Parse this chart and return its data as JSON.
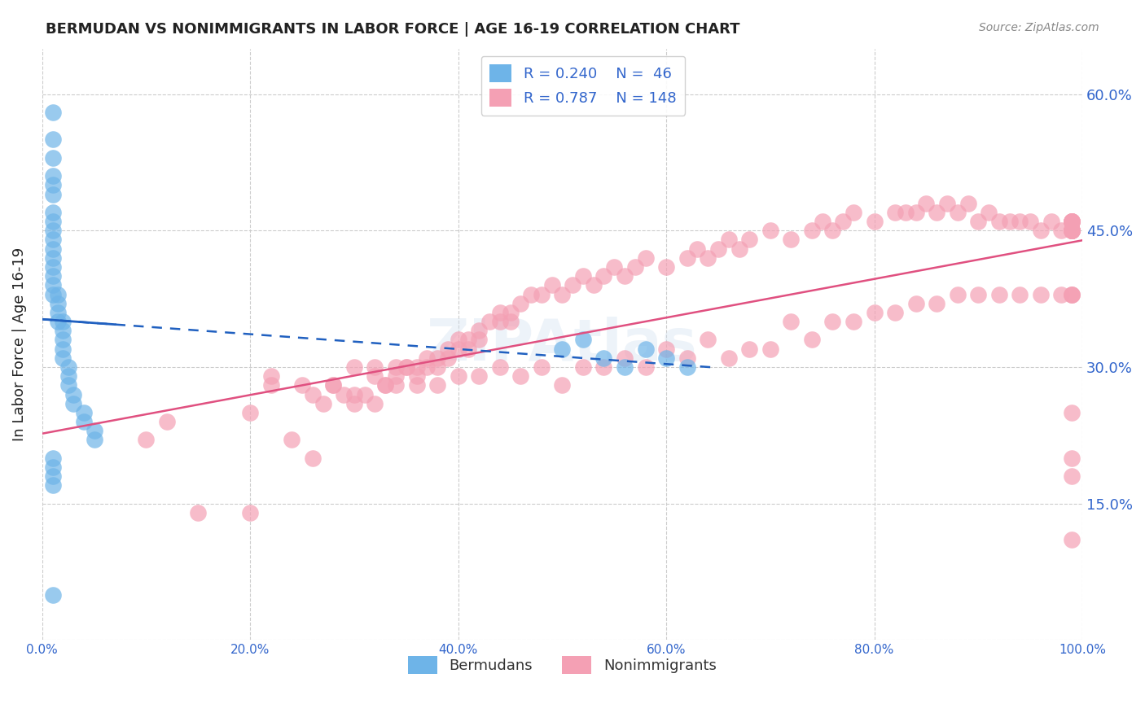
{
  "title": "BERMUDAN VS NONIMMIGRANTS IN LABOR FORCE | AGE 16-19 CORRELATION CHART",
  "source": "Source: ZipAtlas.com",
  "xlabel": "",
  "ylabel": "In Labor Force | Age 16-19",
  "xlim": [
    0.0,
    1.0
  ],
  "ylim": [
    0.0,
    0.65
  ],
  "xticks": [
    0.0,
    0.2,
    0.4,
    0.6,
    0.8,
    1.0
  ],
  "xticklabels": [
    "0.0%",
    "20.0%",
    "40.0%",
    "60.0%",
    "80.0%",
    "100.0%"
  ],
  "yticks": [
    0.0,
    0.15,
    0.3,
    0.45,
    0.6
  ],
  "yticklabels": [
    "",
    "15.0%",
    "30.0%",
    "45.0%",
    "60.0%"
  ],
  "legend_blue_R": "0.240",
  "legend_blue_N": "46",
  "legend_pink_R": "0.787",
  "legend_pink_N": "148",
  "blue_color": "#6EB4E8",
  "pink_color": "#F4A0B4",
  "blue_line_color": "#2060C0",
  "pink_line_color": "#E05080",
  "watermark": "ZIPAtlas",
  "bermudans_x": [
    0.01,
    0.01,
    0.01,
    0.01,
    0.01,
    0.01,
    0.01,
    0.01,
    0.01,
    0.01,
    0.01,
    0.01,
    0.01,
    0.01,
    0.01,
    0.01,
    0.015,
    0.015,
    0.015,
    0.015,
    0.02,
    0.02,
    0.02,
    0.02,
    0.02,
    0.025,
    0.025,
    0.025,
    0.03,
    0.03,
    0.04,
    0.04,
    0.05,
    0.05,
    0.5,
    0.52,
    0.54,
    0.56,
    0.58,
    0.6,
    0.62,
    0.01,
    0.01,
    0.01,
    0.01,
    0.01
  ],
  "bermudans_y": [
    0.58,
    0.55,
    0.53,
    0.51,
    0.5,
    0.49,
    0.47,
    0.46,
    0.45,
    0.44,
    0.43,
    0.42,
    0.41,
    0.4,
    0.39,
    0.38,
    0.38,
    0.37,
    0.36,
    0.35,
    0.35,
    0.34,
    0.33,
    0.32,
    0.31,
    0.3,
    0.29,
    0.28,
    0.27,
    0.26,
    0.25,
    0.24,
    0.23,
    0.22,
    0.32,
    0.33,
    0.31,
    0.3,
    0.32,
    0.31,
    0.3,
    0.2,
    0.19,
    0.18,
    0.17,
    0.05
  ],
  "nonimmigrants_x": [
    0.15,
    0.2,
    0.22,
    0.25,
    0.26,
    0.27,
    0.28,
    0.28,
    0.29,
    0.3,
    0.3,
    0.31,
    0.32,
    0.32,
    0.33,
    0.33,
    0.34,
    0.34,
    0.35,
    0.35,
    0.36,
    0.36,
    0.37,
    0.37,
    0.38,
    0.38,
    0.39,
    0.39,
    0.4,
    0.4,
    0.41,
    0.41,
    0.42,
    0.42,
    0.43,
    0.44,
    0.44,
    0.45,
    0.45,
    0.46,
    0.47,
    0.48,
    0.49,
    0.5,
    0.51,
    0.52,
    0.53,
    0.54,
    0.55,
    0.56,
    0.57,
    0.58,
    0.6,
    0.62,
    0.63,
    0.64,
    0.65,
    0.66,
    0.67,
    0.68,
    0.7,
    0.72,
    0.74,
    0.75,
    0.76,
    0.77,
    0.78,
    0.8,
    0.82,
    0.83,
    0.84,
    0.85,
    0.86,
    0.87,
    0.88,
    0.89,
    0.9,
    0.91,
    0.92,
    0.93,
    0.94,
    0.95,
    0.96,
    0.97,
    0.98,
    0.99,
    0.99,
    0.99,
    0.99,
    0.99,
    0.99,
    0.99,
    0.99,
    0.99,
    0.99,
    0.99,
    0.99,
    0.99,
    0.99,
    0.99,
    0.1,
    0.12,
    0.2,
    0.22,
    0.24,
    0.26,
    0.3,
    0.32,
    0.34,
    0.36,
    0.38,
    0.4,
    0.42,
    0.44,
    0.46,
    0.48,
    0.5,
    0.52,
    0.54,
    0.56,
    0.58,
    0.6,
    0.62,
    0.64,
    0.66,
    0.68,
    0.7,
    0.72,
    0.74,
    0.76,
    0.78,
    0.8,
    0.82,
    0.84,
    0.86,
    0.88,
    0.9,
    0.92,
    0.94,
    0.96,
    0.98,
    0.99,
    0.99,
    0.99,
    0.99,
    0.99,
    0.99,
    0.99
  ],
  "nonimmigrants_y": [
    0.14,
    0.14,
    0.29,
    0.28,
    0.27,
    0.26,
    0.28,
    0.28,
    0.27,
    0.27,
    0.3,
    0.27,
    0.3,
    0.29,
    0.28,
    0.28,
    0.3,
    0.29,
    0.3,
    0.3,
    0.3,
    0.29,
    0.31,
    0.3,
    0.31,
    0.3,
    0.32,
    0.31,
    0.33,
    0.32,
    0.33,
    0.32,
    0.34,
    0.33,
    0.35,
    0.36,
    0.35,
    0.36,
    0.35,
    0.37,
    0.38,
    0.38,
    0.39,
    0.38,
    0.39,
    0.4,
    0.39,
    0.4,
    0.41,
    0.4,
    0.41,
    0.42,
    0.41,
    0.42,
    0.43,
    0.42,
    0.43,
    0.44,
    0.43,
    0.44,
    0.45,
    0.44,
    0.45,
    0.46,
    0.45,
    0.46,
    0.47,
    0.46,
    0.47,
    0.47,
    0.47,
    0.48,
    0.47,
    0.48,
    0.47,
    0.48,
    0.46,
    0.47,
    0.46,
    0.46,
    0.46,
    0.46,
    0.45,
    0.46,
    0.45,
    0.46,
    0.45,
    0.46,
    0.46,
    0.46,
    0.46,
    0.46,
    0.45,
    0.45,
    0.45,
    0.45,
    0.45,
    0.45,
    0.45,
    0.45,
    0.22,
    0.24,
    0.25,
    0.28,
    0.22,
    0.2,
    0.26,
    0.26,
    0.28,
    0.28,
    0.28,
    0.29,
    0.29,
    0.3,
    0.29,
    0.3,
    0.28,
    0.3,
    0.3,
    0.31,
    0.3,
    0.32,
    0.31,
    0.33,
    0.31,
    0.32,
    0.32,
    0.35,
    0.33,
    0.35,
    0.35,
    0.36,
    0.36,
    0.37,
    0.37,
    0.38,
    0.38,
    0.38,
    0.38,
    0.38,
    0.38,
    0.11,
    0.38,
    0.38,
    0.38,
    0.2,
    0.25,
    0.18
  ]
}
